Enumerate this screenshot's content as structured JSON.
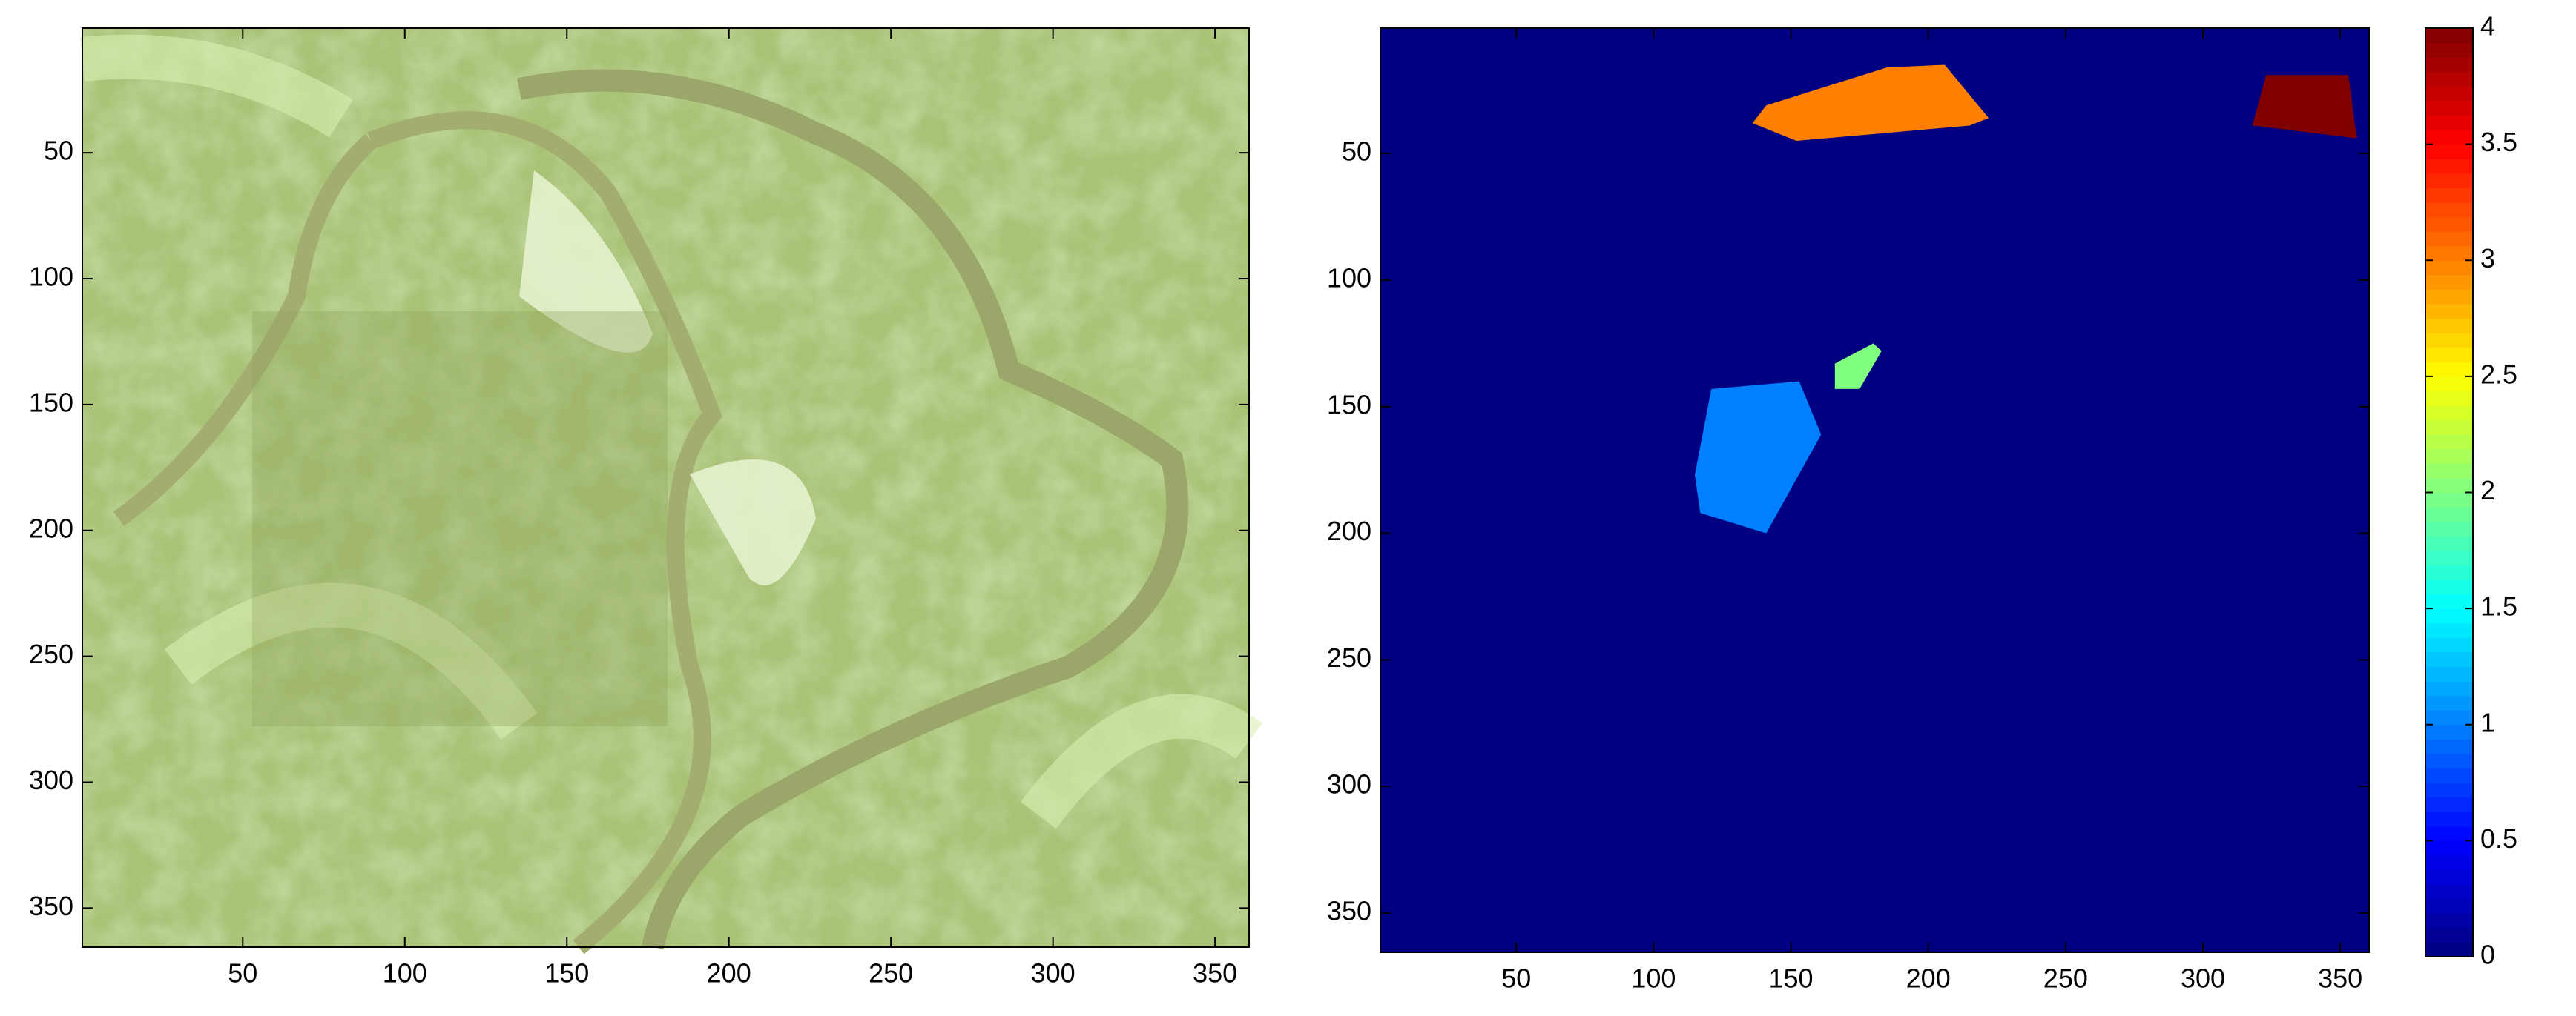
{
  "chart_data": [
    {
      "type": "image",
      "xlim": [
        0.5,
        360.5
      ],
      "ylim": [
        0.5,
        365.5
      ],
      "xticks": [
        50,
        100,
        150,
        200,
        250,
        300,
        350
      ],
      "yticks": [
        50,
        100,
        150,
        200,
        250,
        300,
        350
      ]
    },
    {
      "type": "labelmap",
      "xlim": [
        0.5,
        360.5
      ],
      "ylim": [
        0.5,
        365.5
      ],
      "xticks": [
        50,
        100,
        150,
        200,
        250,
        300,
        350
      ],
      "yticks": [
        50,
        100,
        150,
        200,
        250,
        300,
        350
      ],
      "colormap": "jet",
      "clim": [
        0,
        4
      ],
      "background": 0,
      "regions": [
        {
          "value": 3,
          "x": [
            136,
            141,
            185,
            206,
            222,
            215,
            152
          ],
          "y": [
            38,
            31,
            16,
            15,
            36,
            39,
            45
          ]
        },
        {
          "value": 4,
          "x": [
            323,
            353,
            356,
            318
          ],
          "y": [
            19,
            19,
            44,
            39
          ]
        },
        {
          "value": 2,
          "x": [
            166,
            180,
            183,
            175,
            166
          ],
          "y": [
            133,
            125,
            128,
            143,
            143
          ]
        },
        {
          "value": 1,
          "x": [
            121,
            153,
            161,
            141,
            117,
            115
          ],
          "y": [
            143,
            140,
            161,
            200,
            192,
            177
          ]
        }
      ],
      "colorbar_ticks": [
        0,
        0.5,
        1,
        1.5,
        2,
        2.5,
        3,
        3.5,
        4
      ]
    }
  ]
}
